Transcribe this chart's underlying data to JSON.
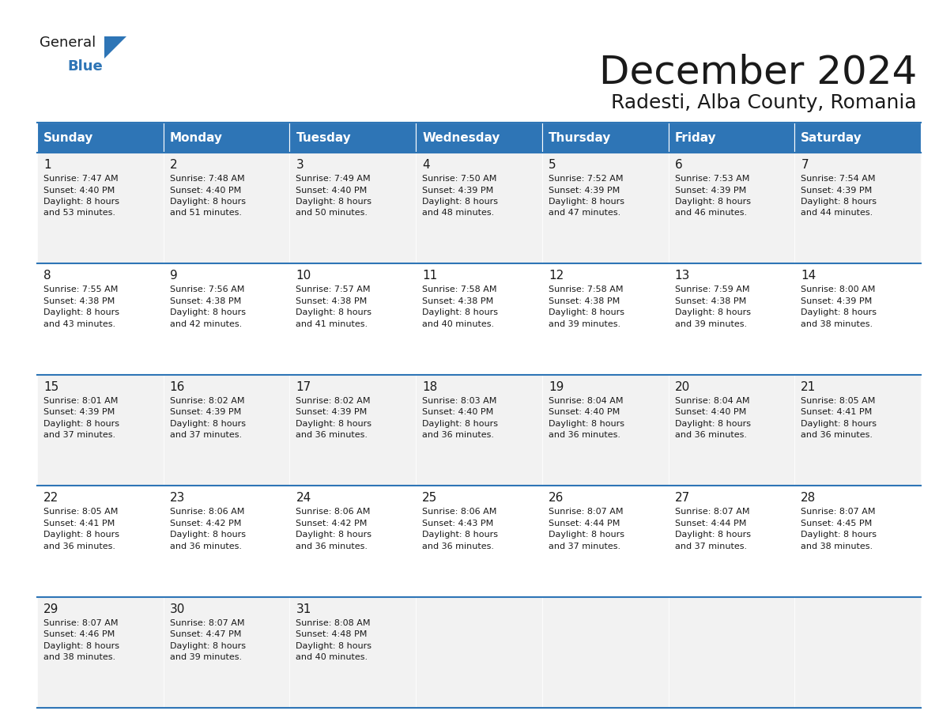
{
  "title": "December 2024",
  "subtitle": "Radesti, Alba County, Romania",
  "header_color": "#2E75B6",
  "header_text_color": "#FFFFFF",
  "row_even_color": "#F2F2F2",
  "row_odd_color": "#FFFFFF",
  "border_color": "#2E75B6",
  "text_color": "#1a1a1a",
  "days_of_week": [
    "Sunday",
    "Monday",
    "Tuesday",
    "Wednesday",
    "Thursday",
    "Friday",
    "Saturday"
  ],
  "calendar_data": [
    [
      {
        "day": 1,
        "sunrise": "7:47 AM",
        "sunset": "4:40 PM",
        "daylight_hours": 8,
        "daylight_minutes": 53
      },
      {
        "day": 2,
        "sunrise": "7:48 AM",
        "sunset": "4:40 PM",
        "daylight_hours": 8,
        "daylight_minutes": 51
      },
      {
        "day": 3,
        "sunrise": "7:49 AM",
        "sunset": "4:40 PM",
        "daylight_hours": 8,
        "daylight_minutes": 50
      },
      {
        "day": 4,
        "sunrise": "7:50 AM",
        "sunset": "4:39 PM",
        "daylight_hours": 8,
        "daylight_minutes": 48
      },
      {
        "day": 5,
        "sunrise": "7:52 AM",
        "sunset": "4:39 PM",
        "daylight_hours": 8,
        "daylight_minutes": 47
      },
      {
        "day": 6,
        "sunrise": "7:53 AM",
        "sunset": "4:39 PM",
        "daylight_hours": 8,
        "daylight_minutes": 46
      },
      {
        "day": 7,
        "sunrise": "7:54 AM",
        "sunset": "4:39 PM",
        "daylight_hours": 8,
        "daylight_minutes": 44
      }
    ],
    [
      {
        "day": 8,
        "sunrise": "7:55 AM",
        "sunset": "4:38 PM",
        "daylight_hours": 8,
        "daylight_minutes": 43
      },
      {
        "day": 9,
        "sunrise": "7:56 AM",
        "sunset": "4:38 PM",
        "daylight_hours": 8,
        "daylight_minutes": 42
      },
      {
        "day": 10,
        "sunrise": "7:57 AM",
        "sunset": "4:38 PM",
        "daylight_hours": 8,
        "daylight_minutes": 41
      },
      {
        "day": 11,
        "sunrise": "7:58 AM",
        "sunset": "4:38 PM",
        "daylight_hours": 8,
        "daylight_minutes": 40
      },
      {
        "day": 12,
        "sunrise": "7:58 AM",
        "sunset": "4:38 PM",
        "daylight_hours": 8,
        "daylight_minutes": 39
      },
      {
        "day": 13,
        "sunrise": "7:59 AM",
        "sunset": "4:38 PM",
        "daylight_hours": 8,
        "daylight_minutes": 39
      },
      {
        "day": 14,
        "sunrise": "8:00 AM",
        "sunset": "4:39 PM",
        "daylight_hours": 8,
        "daylight_minutes": 38
      }
    ],
    [
      {
        "day": 15,
        "sunrise": "8:01 AM",
        "sunset": "4:39 PM",
        "daylight_hours": 8,
        "daylight_minutes": 37
      },
      {
        "day": 16,
        "sunrise": "8:02 AM",
        "sunset": "4:39 PM",
        "daylight_hours": 8,
        "daylight_minutes": 37
      },
      {
        "day": 17,
        "sunrise": "8:02 AM",
        "sunset": "4:39 PM",
        "daylight_hours": 8,
        "daylight_minutes": 36
      },
      {
        "day": 18,
        "sunrise": "8:03 AM",
        "sunset": "4:40 PM",
        "daylight_hours": 8,
        "daylight_minutes": 36
      },
      {
        "day": 19,
        "sunrise": "8:04 AM",
        "sunset": "4:40 PM",
        "daylight_hours": 8,
        "daylight_minutes": 36
      },
      {
        "day": 20,
        "sunrise": "8:04 AM",
        "sunset": "4:40 PM",
        "daylight_hours": 8,
        "daylight_minutes": 36
      },
      {
        "day": 21,
        "sunrise": "8:05 AM",
        "sunset": "4:41 PM",
        "daylight_hours": 8,
        "daylight_minutes": 36
      }
    ],
    [
      {
        "day": 22,
        "sunrise": "8:05 AM",
        "sunset": "4:41 PM",
        "daylight_hours": 8,
        "daylight_minutes": 36
      },
      {
        "day": 23,
        "sunrise": "8:06 AM",
        "sunset": "4:42 PM",
        "daylight_hours": 8,
        "daylight_minutes": 36
      },
      {
        "day": 24,
        "sunrise": "8:06 AM",
        "sunset": "4:42 PM",
        "daylight_hours": 8,
        "daylight_minutes": 36
      },
      {
        "day": 25,
        "sunrise": "8:06 AM",
        "sunset": "4:43 PM",
        "daylight_hours": 8,
        "daylight_minutes": 36
      },
      {
        "day": 26,
        "sunrise": "8:07 AM",
        "sunset": "4:44 PM",
        "daylight_hours": 8,
        "daylight_minutes": 37
      },
      {
        "day": 27,
        "sunrise": "8:07 AM",
        "sunset": "4:44 PM",
        "daylight_hours": 8,
        "daylight_minutes": 37
      },
      {
        "day": 28,
        "sunrise": "8:07 AM",
        "sunset": "4:45 PM",
        "daylight_hours": 8,
        "daylight_minutes": 38
      }
    ],
    [
      {
        "day": 29,
        "sunrise": "8:07 AM",
        "sunset": "4:46 PM",
        "daylight_hours": 8,
        "daylight_minutes": 38
      },
      {
        "day": 30,
        "sunrise": "8:07 AM",
        "sunset": "4:47 PM",
        "daylight_hours": 8,
        "daylight_minutes": 39
      },
      {
        "day": 31,
        "sunrise": "8:08 AM",
        "sunset": "4:48 PM",
        "daylight_hours": 8,
        "daylight_minutes": 40
      },
      null,
      null,
      null,
      null
    ]
  ],
  "logo_text_general": "General",
  "logo_text_blue": "Blue",
  "logo_color_general": "#1a1a1a",
  "logo_color_blue": "#2E75B6",
  "logo_triangle_color": "#2E75B6",
  "title_fontsize": 36,
  "subtitle_fontsize": 18,
  "header_fontsize": 11,
  "day_num_fontsize": 11,
  "cell_text_fontsize": 8
}
